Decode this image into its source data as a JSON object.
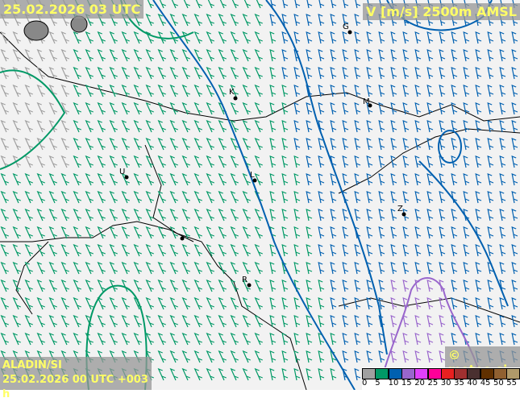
{
  "header": {
    "valid_time": "25.02.2026 03 UTC",
    "field": "V [m/s] 2500m AMSL"
  },
  "footer": {
    "model": "ALADIN/SI",
    "run": "25.02.2026 00 UTC +003 h",
    "copyright": "© meteo.si"
  },
  "legend": {
    "colors": [
      "#a0a0a0",
      "#009966",
      "#0060b0",
      "#9966cc",
      "#e040fb",
      "#ff0099",
      "#e82020",
      "#a03030",
      "#4a3030",
      "#603000",
      "#906030",
      "#b09a6a"
    ],
    "ticks": [
      "0",
      "5",
      "10",
      "15",
      "20",
      "25",
      "30",
      "35",
      "40",
      "45",
      "50",
      "55"
    ]
  },
  "cities": [
    "G",
    "K",
    "M",
    "L",
    "U",
    "Z",
    "R"
  ]
}
